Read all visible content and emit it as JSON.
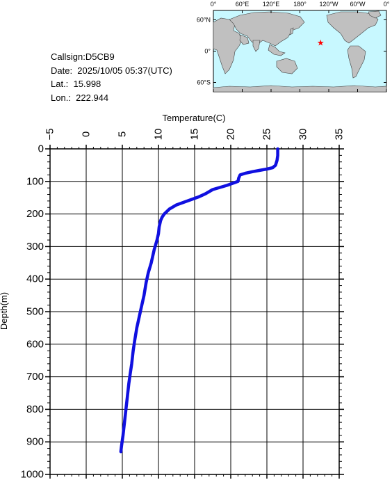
{
  "header": {
    "callsign": "Callsign:D5CB9",
    "date": "Date:  2025/10/05 05:37(UTC)",
    "lat": "Lat.:  15.998",
    "lon": "Lon.:  222.944"
  },
  "map": {
    "lon_labels": [
      "0°",
      "60°E",
      "120°E",
      "180°",
      "120°W",
      "60°W",
      "0°"
    ],
    "lat_labels": [
      "60°N",
      "0°",
      "60°S"
    ],
    "ocean_color": "#c8f8ff",
    "land_color": "#c0c0c0",
    "marker_color": "#ff0000",
    "marker": {
      "lon": 222.944,
      "lat": 15.998
    }
  },
  "chart_data": {
    "type": "line",
    "title": "",
    "xlabel": "Temperature(C)",
    "ylabel": "Depth(m)",
    "xlim": [
      -5,
      35
    ],
    "ylim": [
      1000,
      0
    ],
    "x_ticks": [
      -5,
      0,
      5,
      10,
      15,
      20,
      25,
      30,
      35
    ],
    "y_ticks": [
      0,
      100,
      200,
      300,
      400,
      500,
      600,
      700,
      800,
      900,
      1000
    ],
    "grid": true,
    "line_color": "#1010e0",
    "series": [
      {
        "x": [
          26.5,
          26.5,
          26.4,
          26.2,
          25.8,
          25.0,
          24.0,
          23.0,
          22.0,
          21.3,
          21.1,
          21.0,
          19.5,
          17.5,
          16.5,
          15.5,
          14.0,
          12.5,
          11.5,
          10.8,
          10.5,
          10.3,
          10.1,
          10.0,
          9.8,
          9.4,
          9.0,
          8.6,
          8.3,
          8.0,
          7.6,
          7.3,
          7.0,
          6.7,
          6.5,
          6.3,
          6.1,
          5.9,
          5.7,
          5.5,
          5.3,
          5.1,
          4.9,
          4.8
        ],
        "y": [
          0,
          20,
          35,
          50,
          58,
          62,
          66,
          70,
          75,
          80,
          90,
          100,
          112,
          125,
          138,
          148,
          160,
          172,
          185,
          200,
          210,
          220,
          240,
          260,
          280,
          310,
          350,
          380,
          410,
          450,
          490,
          520,
          550,
          590,
          620,
          660,
          690,
          720,
          760,
          800,
          840,
          880,
          910,
          930
        ]
      }
    ]
  }
}
